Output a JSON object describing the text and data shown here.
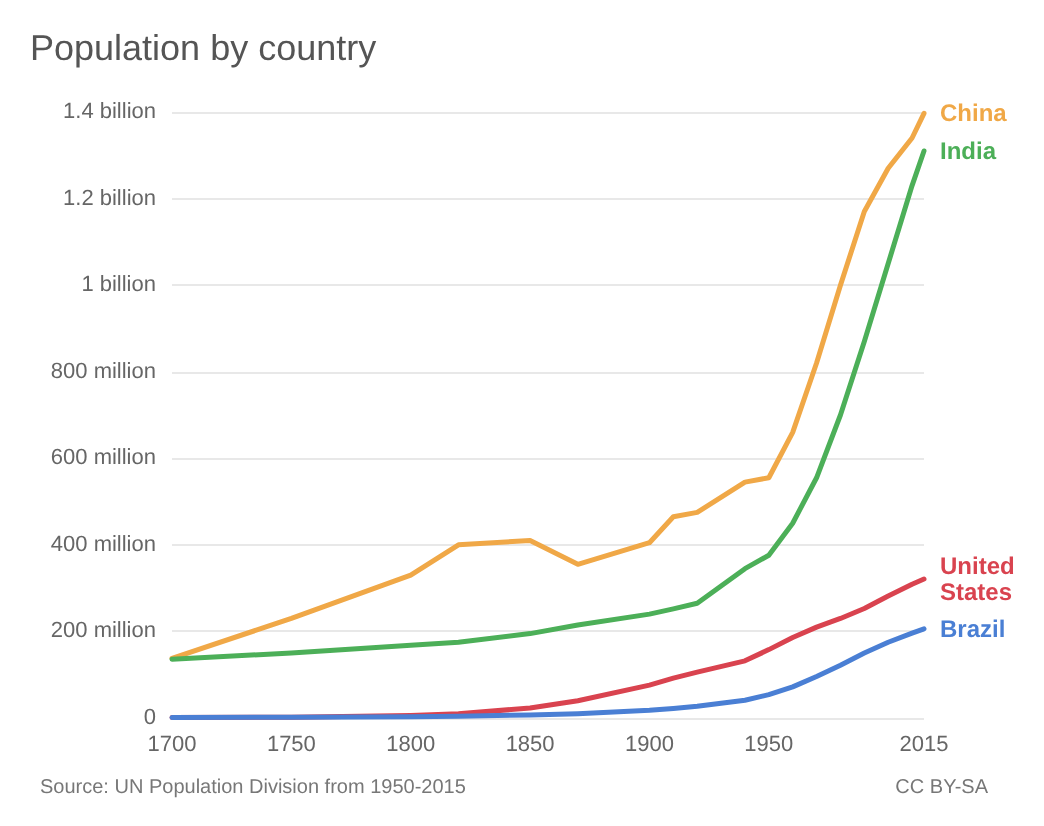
{
  "chart_data": {
    "type": "line",
    "title": "Population by country",
    "x": [
      1700,
      1750,
      1800,
      1820,
      1850,
      1870,
      1900,
      1910,
      1920,
      1940,
      1950,
      1960,
      1970,
      1980,
      1990,
      2000,
      2010,
      2015
    ],
    "series": [
      {
        "name": "China",
        "color": "#f0a847",
        "values": [
          138000000,
          230000000,
          330000000,
          400000000,
          410000000,
          355000000,
          405000000,
          465000000,
          475000000,
          545000000,
          555000000,
          660000000,
          820000000,
          1000000000,
          1170000000,
          1270000000,
          1340000000,
          1397000000
        ]
      },
      {
        "name": "India",
        "color": "#4caf58",
        "values": [
          136000000,
          150000000,
          168000000,
          175000000,
          195000000,
          215000000,
          240000000,
          252000000,
          265000000,
          345000000,
          376000000,
          450000000,
          555000000,
          700000000,
          870000000,
          1050000000,
          1230000000,
          1310000000
        ]
      },
      {
        "name": "United States",
        "color": "#d9434f",
        "values": [
          1000000,
          2000000,
          6000000,
          10000000,
          23000000,
          40000000,
          76000000,
          92000000,
          106000000,
          132000000,
          158000000,
          186000000,
          210000000,
          230000000,
          253000000,
          282000000,
          309000000,
          321000000
        ]
      },
      {
        "name": "Brazil",
        "color": "#4a7fd4",
        "values": [
          1000000,
          2000000,
          3000000,
          4000000,
          7000000,
          10000000,
          18000000,
          22000000,
          27000000,
          41000000,
          54000000,
          72000000,
          96000000,
          122000000,
          150000000,
          175000000,
          196000000,
          206000000
        ]
      }
    ],
    "xlim": [
      1700,
      2015
    ],
    "xticks": [
      1700,
      1750,
      1800,
      1850,
      1900,
      1950,
      2015
    ],
    "ylim": [
      0,
      1400000000
    ],
    "yticks": [
      {
        "value": 0,
        "label": "0"
      },
      {
        "value": 200000000,
        "label": "200 million"
      },
      {
        "value": 400000000,
        "label": "400 million"
      },
      {
        "value": 600000000,
        "label": "600 million"
      },
      {
        "value": 800000000,
        "label": "800 million"
      },
      {
        "value": 1000000000,
        "label": "1 billion"
      },
      {
        "value": 1200000000,
        "label": "1.2 billion"
      },
      {
        "value": 1400000000,
        "label": "1.4 billion"
      }
    ],
    "grid": "y",
    "legend": false,
    "marker": "none",
    "line_style": "solid",
    "annotations": [
      "Source: UN Population Division from 1950-2015",
      "CC BY-SA"
    ]
  }
}
